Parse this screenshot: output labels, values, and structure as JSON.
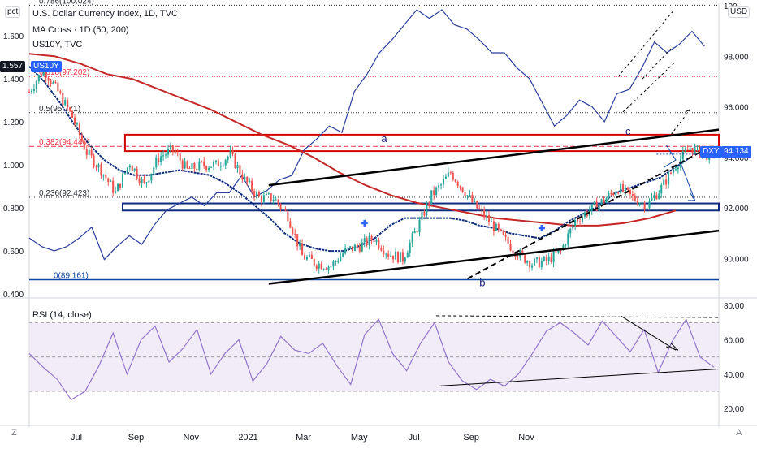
{
  "chart_data": {
    "type": "line",
    "main": {
      "title": "U.S. Dollar Currency Index, 1D, TVC",
      "indicator": "MA Cross · 1D (50, 200)",
      "overlay_symbol": "US10Y, TVC",
      "right_axis": {
        "currency": "USD",
        "ticks": [
          "100",
          "98.000",
          "96.000",
          "94.000",
          "92.000",
          "90.000"
        ],
        "range": [
          88.6,
          100.1
        ]
      },
      "left_axis": {
        "unit": "pct",
        "ticks": [
          "1.600",
          "1.400",
          "1.200",
          "1.000",
          "0.800",
          "0.600",
          "0.400"
        ],
        "range": [
          0.4,
          1.75
        ]
      },
      "x_ticks": [
        "Jul",
        "Sep",
        "Nov",
        "2021",
        "Mar",
        "May",
        "Jul",
        "Sep",
        "Nov"
      ],
      "last_price": {
        "symbol": "DXY",
        "value": "94.134"
      },
      "us10y_last": {
        "symbol": "US10Y",
        "value": "1.557"
      },
      "fib_levels": [
        {
          "label": "0.786(100.024)",
          "value": 100.024
        },
        {
          "label": "0.618(97.202)",
          "value": 97.202
        },
        {
          "label": "0.5(95.771)",
          "value": 95.771
        },
        {
          "label": "0.382(94.440)",
          "value": 94.44
        },
        {
          "label": "0.236(92.423)",
          "value": 92.423
        },
        {
          "label": "0(89.161)",
          "value": 89.161
        }
      ],
      "wave_labels": [
        "a",
        "b",
        "c"
      ],
      "series": [
        {
          "name": "DXY",
          "type": "candles",
          "x": [
            0,
            6,
            12,
            18,
            24,
            30,
            36,
            42,
            48,
            54,
            60,
            66,
            72,
            78,
            84,
            90,
            96,
            102,
            108,
            114,
            120,
            126,
            132,
            138,
            144,
            150,
            156,
            162,
            168,
            172,
            176,
            180,
            186,
            192,
            198,
            204,
            210,
            216,
            222,
            228,
            234,
            240,
            246,
            252,
            258,
            264,
            270,
            276,
            282,
            286
          ],
          "close": [
            96.6,
            97.5,
            96.6,
            95.6,
            94.2,
            93.5,
            92.6,
            93.8,
            92.9,
            94.0,
            94.3,
            93.5,
            93.7,
            93.7,
            94.1,
            93.1,
            92.4,
            92.4,
            91.7,
            90.1,
            89.8,
            89.7,
            90.3,
            90.5,
            90.8,
            90.2,
            90.0,
            91.2,
            92.5,
            92.9,
            93.4,
            92.9,
            92.1,
            91.5,
            90.8,
            90.2,
            89.8,
            89.9,
            90.3,
            91.5,
            91.9,
            92.3,
            92.8,
            92.4,
            92.1,
            92.8,
            93.7,
            94.4,
            94.1,
            94.13
          ]
        },
        {
          "name": "MA 50",
          "values": [
            97.6,
            97.0,
            96.2,
            95.3,
            94.5,
            93.9,
            93.5,
            93.3,
            93.3,
            93.4,
            93.5,
            93.4,
            93.3,
            93.0,
            92.6,
            92.1,
            91.6,
            91.0,
            90.6,
            90.4,
            90.3,
            90.3,
            90.5,
            90.8,
            91.3,
            91.6,
            91.6,
            91.6,
            91.6,
            91.5,
            91.3,
            91.2,
            91.0,
            90.9,
            90.8,
            91.1,
            91.5,
            91.8,
            92.1,
            92.6,
            92.8,
            93.0,
            93.2,
            93.6,
            94.0
          ]
        },
        {
          "name": "MA 200",
          "values": [
            98.1,
            98.0,
            97.7,
            97.3,
            97.1,
            96.7,
            96.3,
            95.9,
            95.4,
            94.9,
            94.5,
            94.0,
            93.4,
            92.9,
            92.5,
            92.2,
            92.0,
            91.8,
            91.6,
            91.5,
            91.4,
            91.3,
            91.3,
            91.4,
            91.6,
            91.9
          ]
        },
        {
          "name": "US10Y",
          "values": [
            0.66,
            0.62,
            0.6,
            0.62,
            0.66,
            0.71,
            0.56,
            0.62,
            0.67,
            0.63,
            0.72,
            0.79,
            0.82,
            0.85,
            0.81,
            0.87,
            0.87,
            0.95,
            0.85,
            0.88,
            0.93,
            0.95,
            1.07,
            1.12,
            1.18,
            1.15,
            1.34,
            1.42,
            1.52,
            1.58,
            1.65,
            1.72,
            1.68,
            1.72,
            1.65,
            1.63,
            1.58,
            1.52,
            1.52,
            1.45,
            1.4,
            1.29,
            1.18,
            1.23,
            1.3,
            1.27,
            1.2,
            1.33,
            1.35,
            1.45,
            1.57,
            1.52,
            1.56,
            1.62,
            1.55
          ]
        }
      ]
    },
    "rsi": {
      "title": "RSI (14, close)",
      "ticks": [
        "80.00",
        "60.00",
        "40.00",
        "20.00"
      ],
      "range": [
        12,
        82
      ],
      "bands": [
        70,
        50,
        30
      ],
      "series": [
        {
          "name": "RSI",
          "values": [
            52,
            44,
            37,
            25,
            30,
            45,
            64,
            40,
            60,
            68,
            47,
            55,
            66,
            40,
            52,
            60,
            36,
            46,
            62,
            54,
            52,
            58,
            45,
            34,
            63,
            72,
            52,
            42,
            58,
            70,
            47,
            36,
            31,
            37,
            33,
            40,
            52,
            65,
            70,
            64,
            57,
            71,
            62,
            53,
            66,
            41,
            59,
            72,
            50,
            44
          ]
        }
      ]
    },
    "grid": false,
    "legend": "top-left"
  },
  "corner": {
    "z_label": "Z",
    "a_label": "A"
  }
}
